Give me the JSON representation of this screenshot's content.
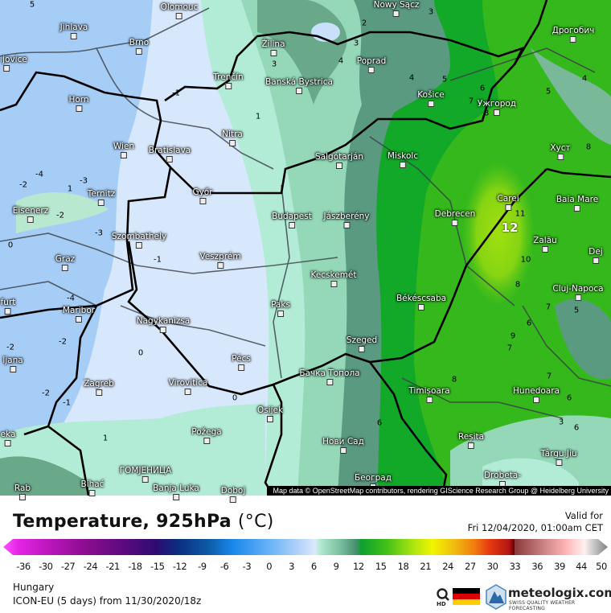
{
  "map": {
    "region_colors": {
      "deep_blue": "#a6cdf6",
      "pale_blue": "#d8e8fc",
      "mint": "#b2ecd6",
      "teal": "#5a9a80",
      "green": "#12a828",
      "bright_green": "#34b81c",
      "yellow_green": "#8ad810"
    },
    "cities": [
      "Olomouc",
      "Jihlava",
      "Brno",
      "Horn",
      "Wien",
      "Bratislava",
      "Trenčín",
      "Nitra",
      "Žilina",
      "Banská Bystrica",
      "Győr",
      "Ternitz",
      "Eisenerz",
      "Szombathely",
      "Graz",
      "Veszprém",
      "Budapest",
      "Maribor",
      "Nagykanizsa",
      "Paks",
      "Pécs",
      "ljana",
      "Zagreb",
      "Virovitica",
      "Osijek",
      "Požega",
      "ГОМЈЕНИЦА",
      "Bihać",
      "Banja Luka",
      "Doboj",
      "Rab",
      "eka",
      "Nowy Sącz",
      "Poprad",
      "Košice",
      "Ужгород",
      "Дрогобич",
      "Хуст",
      "Salgótarján",
      "Miskolc",
      "Jászberény",
      "Debrecen",
      "Carei",
      "Baia Mare",
      "Zalău",
      "Dej",
      "Cluj-Napoca",
      "Kecskemét",
      "Békéscsaba",
      "Szeged",
      "Бачка Топола",
      "Timișoara",
      "Hunedoara",
      "Нови Сад",
      "Reșita",
      "Târgu Jiu",
      "Београд",
      "Drobeta-",
      "ské jovice",
      "furt"
    ],
    "contour_labels": [
      "-1",
      "-4",
      "-2",
      "-3",
      "1",
      "-2",
      "-3",
      "0",
      "-4",
      "-2",
      "-2",
      "0",
      "-2",
      "-1",
      "0",
      "1",
      "-1",
      "3",
      "1",
      "2",
      "3",
      "4",
      "4",
      "5",
      "6",
      "7",
      "8",
      "3",
      "4",
      "5",
      "8",
      "11",
      "12",
      "10",
      "8",
      "5",
      "7",
      "6",
      "9",
      "7",
      "8",
      "7",
      "6",
      "3",
      "6",
      "6",
      "5"
    ],
    "attribution": "Map data © OpenStreetMap contributors, rendering GIScience Research Group @ Heidelberg University"
  },
  "header": {
    "title": "Temperature, 925hPa",
    "unit": "(°C)",
    "valid_label": "Valid for",
    "valid_time": "Fri 12/04/2020, 01:00am CET"
  },
  "legend": {
    "ticks": [
      "-36",
      "-30",
      "-27",
      "-24",
      "-21",
      "-18",
      "-15",
      "-12",
      "-9",
      "-6",
      "-3",
      "0",
      "3",
      "6",
      "9",
      "12",
      "15",
      "18",
      "21",
      "24",
      "27",
      "30",
      "33",
      "36",
      "39",
      "44",
      "50"
    ]
  },
  "footer": {
    "region": "Hungary",
    "model": "ICON-EU (5 days) from  11/30/2020/18z",
    "hd_label": "HD",
    "brand": "meteologix.com",
    "tagline": "SWISS QUALITY WEATHER FORECASTING"
  }
}
